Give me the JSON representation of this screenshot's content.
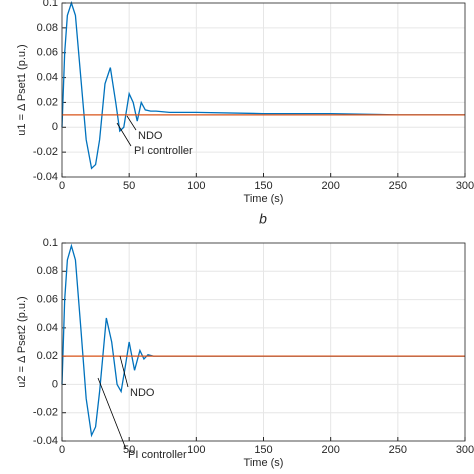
{
  "caption": "b",
  "chart_data": [
    {
      "type": "line",
      "xlabel": "Time (s)",
      "ylabel": "u1 = Δ Pset1 (p.u.)",
      "xlim": [
        0,
        300
      ],
      "xticks": [
        0,
        50,
        100,
        150,
        200,
        250,
        300
      ],
      "ylim": [
        -0.04,
        0.1
      ],
      "yticks": [
        -0.04,
        -0.02,
        0,
        0.02,
        0.04,
        0.06,
        0.08,
        0.1
      ],
      "grid": true,
      "annotations": [
        "NDO",
        "PI controller"
      ],
      "x": [
        0,
        2,
        4,
        7,
        10,
        14,
        18,
        22,
        25,
        28,
        32,
        36,
        40,
        43,
        46,
        50,
        53,
        56,
        59,
        62,
        66,
        70,
        80,
        100,
        150,
        200,
        250,
        300
      ],
      "series": [
        {
          "color": "#0072bd",
          "values": [
            0,
            0.06,
            0.09,
            0.1,
            0.09,
            0.04,
            -0.01,
            -0.033,
            -0.03,
            -0.01,
            0.035,
            0.048,
            0.02,
            -0.003,
            0.0,
            0.027,
            0.02,
            0.005,
            0.02,
            0.014,
            0.013,
            0.013,
            0.012,
            0.012,
            0.011,
            0.011,
            0.01,
            0.01
          ]
        },
        {
          "color": "#d95319",
          "values": [
            0.01,
            0.01,
            0.01,
            0.01,
            0.01,
            0.01,
            0.01,
            0.01,
            0.01,
            0.01,
            0.01,
            0.01,
            0.01,
            0.01,
            0.01,
            0.01,
            0.01,
            0.01,
            0.01,
            0.01,
            0.01,
            0.01,
            0.01,
            0.01,
            0.01,
            0.01,
            0.01,
            0.01
          ]
        }
      ]
    },
    {
      "type": "line",
      "xlabel": "Time (s)",
      "ylabel": "u2 = Δ Pset2 (p.u.)",
      "xlim": [
        0,
        300
      ],
      "xticks": [
        0,
        50,
        100,
        150,
        200,
        250,
        300
      ],
      "ylim": [
        -0.04,
        0.1
      ],
      "yticks": [
        -0.04,
        -0.02,
        0,
        0.02,
        0.04,
        0.06,
        0.08,
        0.1
      ],
      "grid": true,
      "annotations": [
        "NDO",
        "PI controller"
      ],
      "x": [
        0,
        2,
        4,
        7,
        10,
        14,
        18,
        22,
        25,
        28,
        33,
        37,
        41,
        44,
        47,
        50,
        54,
        58,
        61,
        64,
        68,
        75,
        90,
        120,
        150,
        200,
        250,
        300
      ],
      "series": [
        {
          "color": "#0072bd",
          "values": [
            0,
            0.06,
            0.088,
            0.098,
            0.088,
            0.04,
            -0.01,
            -0.036,
            -0.03,
            -0.005,
            0.047,
            0.03,
            0.0,
            -0.005,
            0.012,
            0.03,
            0.01,
            0.024,
            0.018,
            0.021,
            0.02,
            0.02,
            0.02,
            0.02,
            0.02,
            0.02,
            0.02,
            0.02
          ]
        },
        {
          "color": "#d95319",
          "values": [
            0.02,
            0.02,
            0.02,
            0.02,
            0.02,
            0.02,
            0.02,
            0.02,
            0.02,
            0.02,
            0.02,
            0.02,
            0.02,
            0.02,
            0.02,
            0.02,
            0.02,
            0.02,
            0.02,
            0.02,
            0.02,
            0.02,
            0.02,
            0.02,
            0.02,
            0.02,
            0.02,
            0.02
          ]
        }
      ]
    }
  ]
}
